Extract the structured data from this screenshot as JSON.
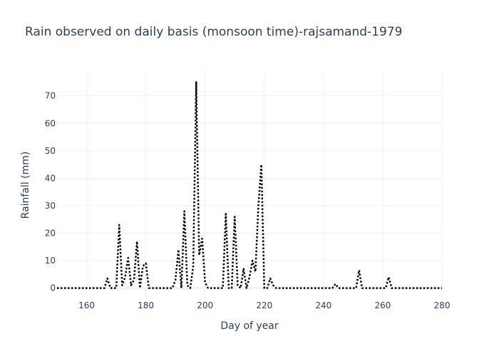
{
  "chart_data": {
    "type": "line",
    "title": "Rain observed on daily basis (monsoon time)-rajsamand-1979",
    "xlabel": "Day of year",
    "ylabel": "Rainfall (mm)",
    "xlim": [
      150,
      280
    ],
    "ylim": [
      -4,
      79
    ],
    "xticks": [
      160,
      180,
      200,
      220,
      240,
      260,
      280
    ],
    "yticks": [
      0,
      10,
      20,
      30,
      40,
      50,
      60,
      70
    ],
    "grid": true,
    "line_style": "dotted",
    "line_color": "#000000",
    "series": [
      {
        "x": [
          150,
          151,
          152,
          153,
          154,
          155,
          156,
          157,
          158,
          159,
          160,
          161,
          162,
          163,
          164,
          165,
          166,
          167,
          168,
          169,
          170,
          171,
          172,
          173,
          174,
          175,
          176,
          177,
          178,
          179,
          180,
          181,
          182,
          183,
          184,
          185,
          186,
          187,
          188,
          189,
          190,
          191,
          192,
          193,
          194,
          195,
          196,
          197,
          198,
          199,
          200,
          201,
          202,
          203,
          204,
          205,
          206,
          207,
          208,
          209,
          210,
          211,
          212,
          213,
          214,
          215,
          216,
          217,
          218,
          219,
          220,
          221,
          222,
          223,
          224,
          225,
          226,
          227,
          228,
          229,
          230,
          231,
          232,
          233,
          234,
          235,
          236,
          237,
          238,
          239,
          240,
          241,
          242,
          243,
          244,
          245,
          246,
          247,
          248,
          249,
          250,
          251,
          252,
          253,
          254,
          255,
          256,
          257,
          258,
          259,
          260,
          261,
          262,
          263,
          264,
          265,
          266,
          267,
          268,
          269,
          270,
          271,
          272,
          273,
          274,
          275,
          276,
          277,
          278,
          279,
          280
        ],
        "y": [
          0,
          0,
          0,
          0,
          0,
          0,
          0,
          0,
          0,
          0,
          0,
          0,
          0,
          0,
          0,
          0,
          0,
          3.5,
          0,
          0,
          0,
          23,
          1,
          4,
          11,
          1,
          3,
          17,
          0,
          8,
          9,
          0,
          0,
          0,
          0,
          0,
          0,
          0,
          0,
          0,
          3,
          14,
          0,
          28,
          1,
          0,
          8,
          75,
          12,
          18,
          2,
          0,
          0,
          0,
          0,
          0,
          0,
          27,
          0,
          0,
          26,
          1,
          0,
          7,
          0,
          4,
          10,
          6,
          30,
          45,
          0,
          0,
          3.5,
          1,
          0,
          0,
          0,
          0,
          0,
          0,
          0,
          0,
          0,
          0,
          0,
          0,
          0,
          0,
          0,
          0,
          0,
          0,
          0,
          0,
          1.5,
          0,
          0,
          0,
          0,
          0,
          0,
          0,
          6.5,
          0,
          0,
          0,
          0,
          0,
          0,
          0,
          0,
          0,
          4,
          0,
          0,
          0,
          0,
          0,
          0,
          0,
          0,
          0,
          0,
          0,
          0,
          0,
          0,
          0,
          0,
          0,
          0
        ]
      }
    ]
  }
}
